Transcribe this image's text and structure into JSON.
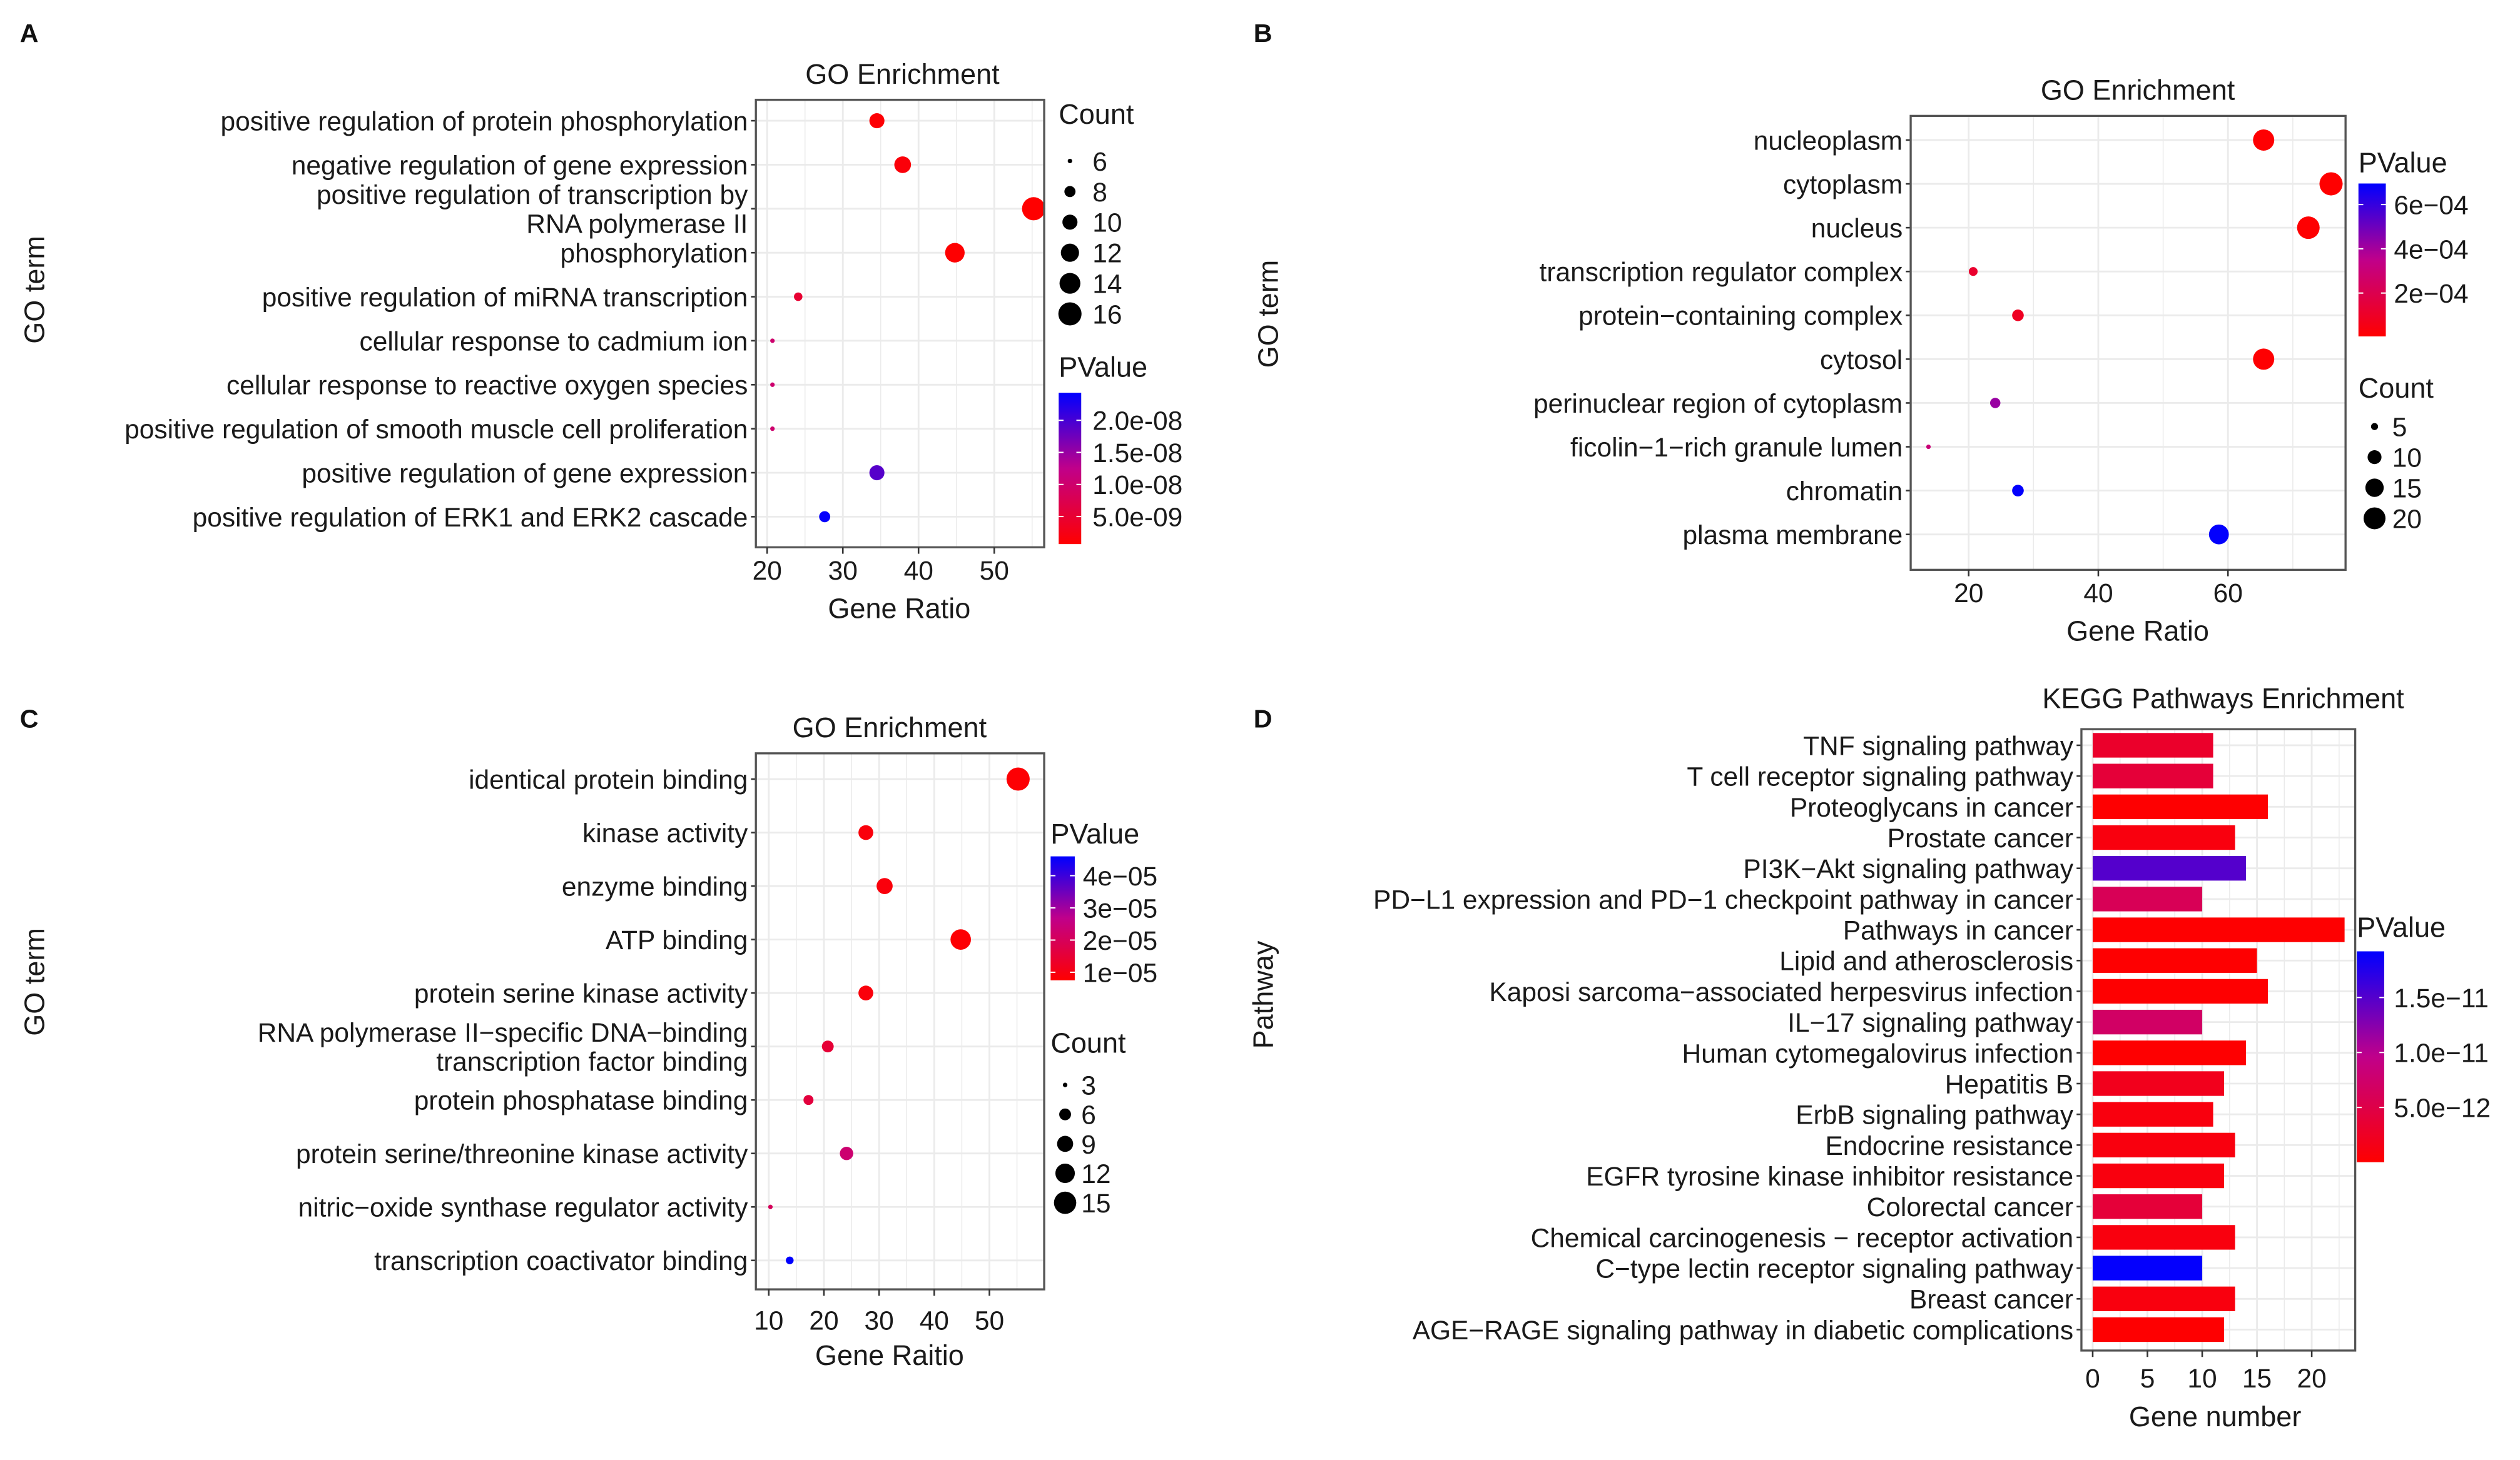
{
  "colors": {
    "low": "#ff0000",
    "mid": "#c0008a",
    "high": "#0000ff",
    "grid": "#ebebeb",
    "frame": "#555555"
  },
  "chart_data": [
    {
      "panel_label": "A",
      "type": "scatter",
      "title": "GO Enrichment",
      "xlabel": "Gene Ratio",
      "ylabel": "GO term",
      "x_ticks": [
        20,
        30,
        40,
        50
      ],
      "grid": true,
      "categories": [
        "positive regulation of protein phosphorylation",
        "negative regulation of gene expression",
        "positive regulation of transcription by\nRNA polymerase II",
        "phosphorylation",
        "positive regulation of miRNA transcription",
        "cellular response to cadmium ion",
        "cellular response to reactive oxygen species",
        "positive regulation of smooth muscle cell proliferation",
        "positive regulation of gene expression",
        "positive regulation of ERK1 and ERK2 cascade"
      ],
      "x": [
        34.5,
        37.9,
        55.2,
        44.8,
        24.1,
        20.7,
        20.7,
        20.7,
        34.5,
        27.6
      ],
      "count": [
        10,
        11,
        16,
        13,
        7,
        6,
        6,
        6,
        10,
        8
      ],
      "pvalue": [
        1e-09,
        1.5e-09,
        7e-10,
        8e-10,
        5e-09,
        1e-08,
        1e-08,
        1e-08,
        1.9e-08,
        2.4e-08
      ],
      "size_legend": {
        "title": "Count",
        "values": [
          6,
          8,
          10,
          12,
          14,
          16
        ]
      },
      "color_legend": {
        "title": "PValue",
        "range": [
          7e-10,
          2.43e-08
        ],
        "tick_values": [
          2e-08,
          1.5e-08,
          1e-08,
          5e-09
        ],
        "tick_labels": [
          "2.0e-08",
          "1.5e-08",
          "1.0e-08",
          "5.0e-09"
        ]
      },
      "legend_order": [
        "size",
        "color"
      ]
    },
    {
      "panel_label": "B",
      "type": "scatter",
      "title": "GO Enrichment",
      "xlabel": "Gene Ratio",
      "ylabel": "GO term",
      "x_ticks": [
        20,
        40,
        60
      ],
      "grid": true,
      "categories": [
        "nucleoplasm",
        "cytoplasm",
        "nucleus",
        "transcription regulator complex",
        "protein−containing complex",
        "cytosol",
        "perinuclear region of cytoplasm",
        "ficolin−1−rich granule lumen",
        "chromatin",
        "plasma membrane"
      ],
      "x": [
        65.5,
        75.9,
        72.4,
        20.7,
        27.6,
        65.5,
        24.1,
        13.8,
        27.6,
        58.6
      ],
      "count": [
        19,
        22,
        21,
        6,
        8,
        19,
        7,
        4,
        8,
        17
      ],
      "pvalue": [
        1e-05,
        5e-06,
        8e-06,
        0.00012,
        9e-05,
        1e-05,
        0.00042,
        0.0003,
        0.00069,
        0.00069
      ],
      "size_legend": {
        "title": "Count",
        "values": [
          5,
          10,
          15,
          20
        ]
      },
      "color_legend": {
        "title": "PValue",
        "range": [
          4e-06,
          0.000695
        ],
        "tick_values": [
          0.0006,
          0.0004,
          0.0002
        ],
        "tick_labels": [
          "6e−04",
          "4e−04",
          "2e−04"
        ]
      },
      "legend_order": [
        "color",
        "size"
      ]
    },
    {
      "panel_label": "C",
      "type": "scatter",
      "title": "GO Enrichment",
      "xlabel": "Gene Raitio",
      "ylabel": "GO term",
      "x_ticks": [
        10,
        20,
        30,
        40,
        50
      ],
      "grid": true,
      "categories": [
        "identical protein binding",
        "kinase activity",
        "enzyme binding",
        "ATP binding",
        "protein serine kinase activity",
        "RNA polymerase II−specific DNA−binding\ntranscription factor binding",
        "protein phosphatase binding",
        "protein serine/threonine kinase activity",
        "nitric−oxide synthase regulator activity",
        "transcription coactivator binding"
      ],
      "x": [
        55.2,
        27.6,
        31.0,
        44.8,
        27.6,
        20.7,
        17.2,
        24.1,
        10.3,
        13.8
      ],
      "count": [
        16,
        8,
        9,
        13,
        8,
        6,
        5,
        7,
        3,
        4
      ],
      "pvalue": [
        8e-06,
        9e-06,
        9e-06,
        8e-06,
        9e-06,
        1.5e-05,
        1.6e-05,
        2.3e-05,
        2e-05,
        4.6e-05
      ],
      "size_legend": {
        "title": "Count",
        "values": [
          3,
          6,
          9,
          12,
          15
        ]
      },
      "color_legend": {
        "title": "PValue",
        "range": [
          7.5e-06,
          4.6e-05
        ],
        "tick_values": [
          4e-05,
          3e-05,
          2e-05,
          1e-05
        ],
        "tick_labels": [
          "4e−05",
          "3e−05",
          "2e−05",
          "1e−05"
        ]
      },
      "legend_order": [
        "color",
        "size"
      ]
    },
    {
      "panel_label": "D",
      "type": "bar",
      "orientation": "horizontal",
      "title": "KEGG Pathways Enrichment",
      "xlabel": "Gene number",
      "ylabel": "Pathway",
      "x_ticks": [
        0,
        5,
        10,
        15,
        20
      ],
      "grid": true,
      "categories": [
        "TNF signaling pathway",
        "T cell receptor signaling pathway",
        "Proteoglycans in cancer",
        "Prostate cancer",
        "PI3K−Akt signaling pathway",
        "PD−L1 expression and PD−1 checkpoint pathway in cancer",
        "Pathways in cancer",
        "Lipid and atherosclerosis",
        "Kaposi sarcoma−associated herpesvirus infection",
        "IL−17 signaling pathway",
        "Human cytomegalovirus infection",
        "Hepatitis B",
        "ErbB signaling pathway",
        "Endocrine resistance",
        "EGFR tyrosine kinase inhibitor resistance",
        "Colorectal cancer",
        "Chemical carcinogenesis − receptor activation",
        "C−type lectin receptor signaling pathway",
        "Breast cancer",
        "AGE−RAGE signaling pathway in diabetic complications"
      ],
      "values": [
        11,
        11,
        16,
        13,
        14,
        10,
        23,
        15,
        16,
        10,
        14,
        12,
        11,
        13,
        12,
        10,
        13,
        10,
        13,
        12
      ],
      "pvalue": [
        3e-12,
        4e-12,
        1e-13,
        1e-12,
        1.5e-11,
        6e-12,
        1e-13,
        1e-13,
        1e-13,
        7e-12,
        1e-13,
        2e-12,
        1e-12,
        1e-12,
        1e-12,
        4e-12,
        1e-12,
        1.9e-11,
        1e-12,
        1e-13
      ],
      "color_legend": {
        "title": "PValue",
        "range": [
          2e-14,
          1.92e-11
        ],
        "tick_values": [
          1.5e-11,
          1e-11,
          5e-12
        ],
        "tick_labels": [
          "1.5e−11",
          "1.0e−11",
          "5.0e−12"
        ]
      }
    }
  ]
}
